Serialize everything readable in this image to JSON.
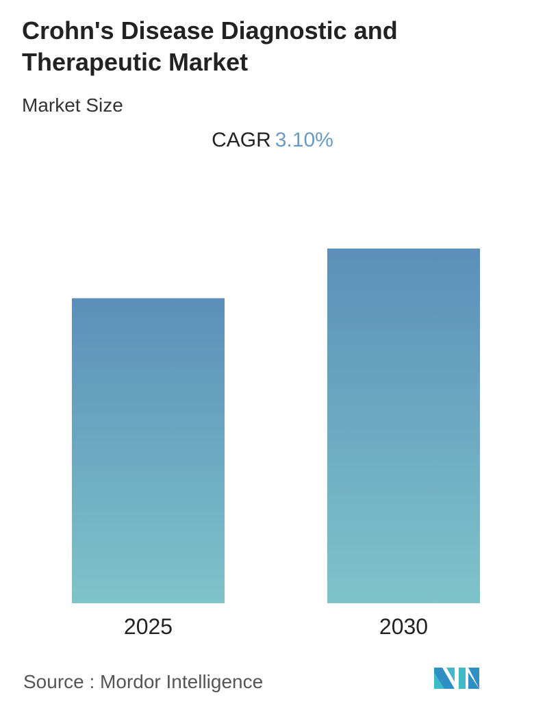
{
  "title": "Crohn's Disease Diagnostic and Therapeutic Market",
  "subtitle": "Market Size",
  "cagr": {
    "label": "CAGR",
    "value": "3.10%",
    "color": "#6a9bc3"
  },
  "source": "Source :  Mordor Intelligence",
  "logo": "Mordor Intelligence logo",
  "chart_data": {
    "type": "bar",
    "categories": [
      "2025",
      "2030"
    ],
    "values": [
      86,
      100
    ],
    "value_note_hidden": false,
    "gradient": {
      "top": "#5b8fba",
      "bottom": "#7fc3c9"
    },
    "grid": false
  }
}
